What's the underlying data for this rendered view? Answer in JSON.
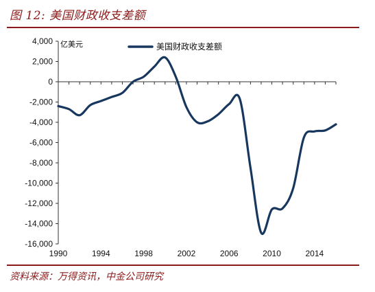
{
  "header": {
    "figure_title": "图 12: 美国财政收支差额"
  },
  "footer": {
    "source": "资料来源：万得资讯，中金公司研究"
  },
  "chart_data": {
    "type": "line",
    "unit_label": "亿美元",
    "xlim": [
      1990,
      2016
    ],
    "ylim": [
      -16000,
      4000
    ],
    "x_ticks": [
      1990,
      1994,
      1998,
      2002,
      2006,
      2010,
      2014
    ],
    "x_tick_labels": [
      "1990",
      "1994",
      "1998",
      "2002",
      "2006",
      "2010",
      "2014"
    ],
    "y_ticks": [
      4000,
      2000,
      0,
      -2000,
      -4000,
      -6000,
      -8000,
      -10000,
      -12000,
      -14000,
      -16000
    ],
    "y_tick_labels": [
      "4,000",
      "2,000",
      "0",
      "-2,000",
      "-4,000",
      "-6,000",
      "-8,000",
      "-10,000",
      "-12,000",
      "-14,000",
      "-16,000"
    ],
    "legend_position": "top-center",
    "series": [
      {
        "name": "美国财政收支差额",
        "color": "#17375e",
        "x": [
          1990,
          1991,
          1992,
          1993,
          1994,
          1995,
          1996,
          1997,
          1998,
          1999,
          2000,
          2001,
          2002,
          2003,
          2004,
          2005,
          2006,
          2007,
          2008,
          2009,
          2010,
          2011,
          2012,
          2013,
          2014,
          2015,
          2016
        ],
        "values": [
          -2400,
          -2700,
          -3300,
          -2300,
          -1900,
          -1500,
          -1100,
          0,
          500,
          1500,
          2400,
          500,
          -2500,
          -4000,
          -3900,
          -3200,
          -2200,
          -1700,
          -8500,
          -14900,
          -12600,
          -12500,
          -10500,
          -5500,
          -4900,
          -4800,
          -4200
        ]
      }
    ]
  }
}
